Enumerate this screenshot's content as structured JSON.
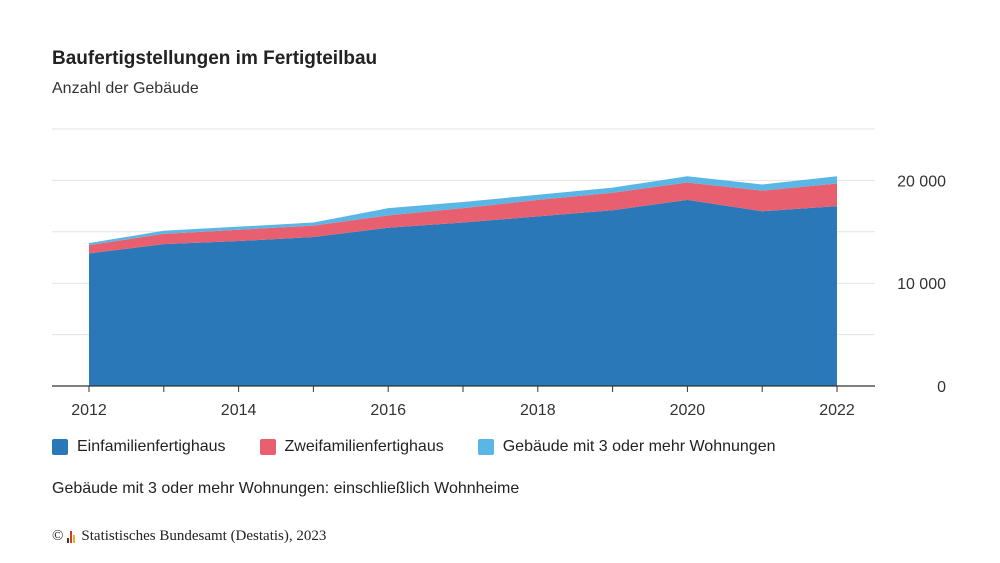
{
  "chart_data": {
    "type": "area",
    "stacked": true,
    "title": "Baufertigstellungen im Fertigteilbau",
    "subtitle": "Anzahl der Gebäude",
    "x": [
      2012,
      2013,
      2014,
      2015,
      2016,
      2017,
      2018,
      2019,
      2020,
      2021,
      2022
    ],
    "x_tick_labels": [
      "2012",
      "2014",
      "2016",
      "2018",
      "2020",
      "2022"
    ],
    "y_tick_labels": [
      "0",
      "10 000",
      "20 000"
    ],
    "ylim": [
      0,
      25000
    ],
    "grid": true,
    "legend_position": "bottom-left",
    "series": [
      {
        "name": "Einfamilienfertighaus",
        "color": "#2b78b8",
        "values": [
          12900,
          13800,
          14100,
          14500,
          15400,
          15900,
          16500,
          17100,
          18100,
          17000,
          17500
        ]
      },
      {
        "name": "Zweifamilienfertighaus",
        "color": "#e8606f",
        "values": [
          800,
          1000,
          1100,
          1100,
          1200,
          1400,
          1600,
          1700,
          1700,
          2000,
          2200
        ]
      },
      {
        "name": "Gebäude mit 3 oder mehr Wohnungen",
        "color": "#5ab6e4",
        "values": [
          200,
          300,
          300,
          300,
          700,
          600,
          500,
          500,
          600,
          600,
          700
        ]
      }
    ],
    "note": "Gebäude mit 3 oder mehr Wohnungen: einschließlich Wohnheime"
  },
  "footer": {
    "copyright": "©",
    "source": "Statistisches Bundesamt (Destatis), 2023"
  },
  "colors": {
    "logo": [
      "#3a3a3a",
      "#d9362c",
      "#e8b22a"
    ]
  }
}
